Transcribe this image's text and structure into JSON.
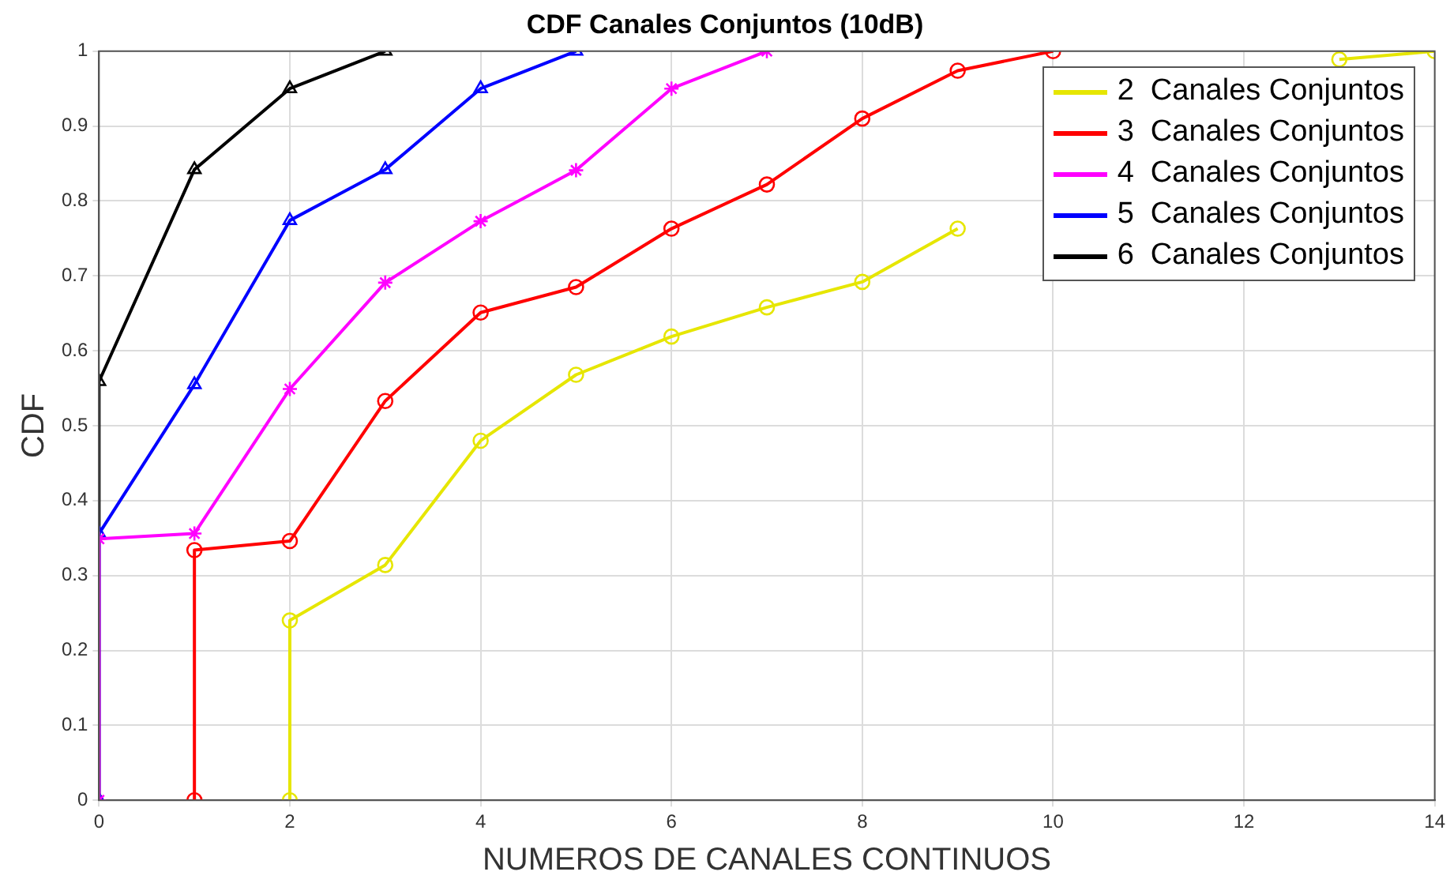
{
  "chart_data": {
    "type": "line",
    "title": "CDF Canales Conjuntos (10dB)",
    "xlabel": "NUMEROS DE CANALES CONTINUOS",
    "ylabel": "CDF",
    "xlim": [
      0,
      14
    ],
    "xticks": [
      0,
      2,
      4,
      6,
      8,
      10,
      12,
      14
    ],
    "ylim": [
      0,
      1
    ],
    "yticks": [
      0,
      0.1,
      0.2,
      0.3,
      0.4,
      0.5,
      0.6,
      0.7,
      0.8,
      0.9,
      1
    ],
    "grid": true,
    "legend": "top right",
    "line_style": "solid",
    "series": [
      {
        "name": "2  Canales Conjuntos",
        "color": "#e6e600",
        "marker": "circle",
        "x": [
          2,
          2,
          3,
          4,
          5,
          6,
          7,
          8,
          9,
          10,
          11,
          12,
          13,
          14
        ],
        "values": [
          0,
          0.24,
          0.314,
          0.48,
          0.568,
          0.619,
          0.658,
          0.692,
          0.763,
          null,
          null,
          null,
          0.989,
          1
        ]
      },
      {
        "name": "3  Canales Conjuntos",
        "color": "#ff0000",
        "marker": "circle",
        "x": [
          1,
          1,
          2,
          3,
          4,
          5,
          6,
          7,
          8,
          9,
          10
        ],
        "values": [
          0,
          0.334,
          0.346,
          0.533,
          0.651,
          0.685,
          0.763,
          0.822,
          0.91,
          0.974,
          1
        ]
      },
      {
        "name": "4  Canales Conjuntos",
        "color": "#ff00ff",
        "marker": "cross",
        "x": [
          0,
          0,
          1,
          2,
          3,
          4,
          5,
          6,
          7
        ],
        "values": [
          0,
          0.349,
          0.356,
          0.549,
          0.691,
          0.773,
          0.841,
          0.95,
          1
        ]
      },
      {
        "name": "5  Canales Conjuntos",
        "color": "#0000ff",
        "marker": "triangle",
        "x": [
          0,
          0,
          1,
          2,
          3,
          4,
          5
        ],
        "values": [
          0,
          0.356,
          0.555,
          0.774,
          0.842,
          0.95,
          1
        ]
      },
      {
        "name": "6  Canales Conjuntos",
        "color": "#000000",
        "marker": "triangle",
        "x": [
          0,
          0,
          1,
          2,
          3
        ],
        "values": [
          0,
          0.559,
          0.842,
          0.95,
          1
        ]
      }
    ]
  }
}
